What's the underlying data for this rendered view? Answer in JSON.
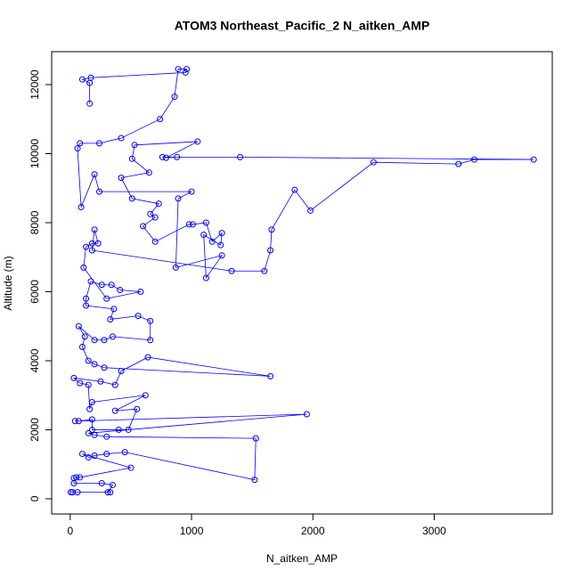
{
  "chart_data": {
    "type": "line",
    "title": "ATOM3 Northeast_Pacific_2 N_aitken_AMP",
    "x_label": "N_aitken_AMP",
    "y_label": "Altitude (m)",
    "xlim": [
      -153,
      3973
    ],
    "ylim": [
      -440,
      12955
    ],
    "xticks": [
      0,
      1000,
      2000,
      3000
    ],
    "yticks": [
      0,
      2000,
      4000,
      6000,
      8000,
      10000,
      12000
    ],
    "series": [
      {
        "color": "#0000ff",
        "x": [
          5,
          20,
          60,
          330,
          310,
          350,
          260,
          30,
          30,
          50,
          80,
          500,
          100,
          150,
          200,
          300,
          450,
          1520,
          1530,
          300,
          200,
          150,
          1950,
          40,
          70,
          180,
          180,
          400,
          480,
          550,
          370,
          620,
          180,
          160,
          150,
          80,
          30,
          250,
          370,
          420,
          640,
          1650,
          280,
          200,
          150,
          100,
          120,
          70,
          200,
          280,
          350,
          660,
          660,
          560,
          330,
          360,
          130,
          130,
          170,
          260,
          340,
          410,
          580,
          300,
          110,
          130,
          180,
          230,
          200,
          180,
          1330,
          1600,
          1650,
          1660,
          1850,
          1980,
          2500,
          3200,
          3330,
          3820,
          1400,
          760,
          880,
          790,
          1050,
          530,
          510,
          650,
          420,
          510,
          730,
          660,
          700,
          600,
          700,
          980,
          1010,
          1120,
          1170,
          1250,
          1240,
          1100,
          1120,
          1250,
          870,
          890,
          1000,
          240,
          200,
          90,
          60,
          80,
          240,
          420,
          740,
          860,
          890,
          960,
          950,
          170,
          100,
          160,
          160
        ],
        "values": [
          190,
          190,
          190,
          190,
          190,
          400,
          450,
          450,
          600,
          620,
          620,
          900,
          1300,
          1200,
          1250,
          1300,
          1350,
          550,
          1750,
          1800,
          1850,
          1900,
          2450,
          2250,
          2250,
          2300,
          2000,
          2000,
          2000,
          2600,
          2550,
          3000,
          2800,
          2600,
          3300,
          3350,
          3500,
          3400,
          3300,
          3700,
          4100,
          3550,
          3800,
          3900,
          4000,
          4400,
          4700,
          5000,
          4600,
          4600,
          4700,
          4600,
          5150,
          5300,
          5200,
          5500,
          5600,
          5800,
          6300,
          6200,
          6200,
          6050,
          6000,
          5800,
          6700,
          7300,
          7400,
          7400,
          7800,
          7200,
          6600,
          6600,
          7200,
          7800,
          8950,
          8350,
          9750,
          9700,
          9830,
          9830,
          9900,
          9900,
          9900,
          9880,
          10350,
          10250,
          9850,
          9450,
          9300,
          8700,
          8550,
          8250,
          8150,
          7900,
          7450,
          7950,
          7950,
          8000,
          7450,
          7700,
          7350,
          7650,
          6400,
          7050,
          6700,
          8700,
          8900,
          8900,
          9400,
          8450,
          10150,
          10300,
          10300,
          10450,
          11000,
          11650,
          12450,
          12450,
          12350,
          12200,
          12150,
          12050,
          11450
        ]
      }
    ]
  }
}
